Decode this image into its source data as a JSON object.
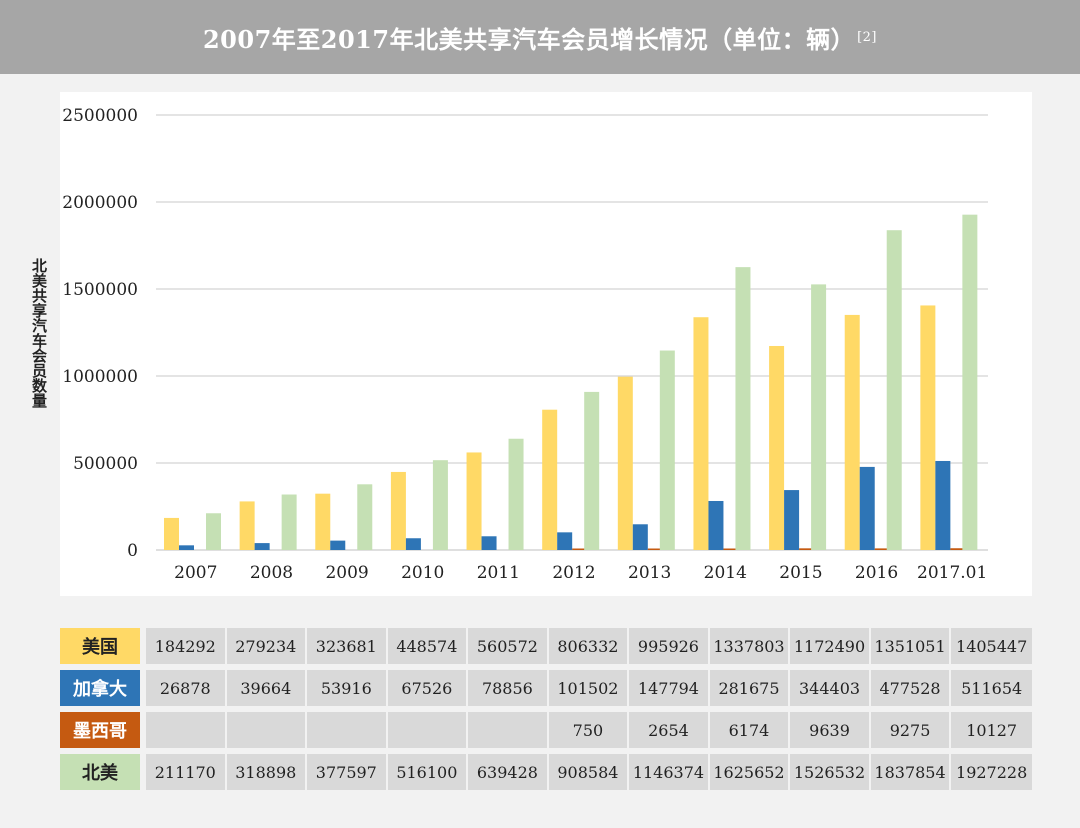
{
  "title": "2007年至2017年北美共享汽车会员增长情况（单位：辆）",
  "title_ref": "[2]",
  "colors": {
    "us": "#ffd966",
    "canada": "#2e75b6",
    "mexico": "#c55a11",
    "north_america": "#c5e0b4"
  },
  "chart_data": {
    "type": "bar",
    "categories": [
      "2007",
      "2008",
      "2009",
      "2010",
      "2011",
      "2012",
      "2013",
      "2014",
      "2015",
      "2016",
      "2017.01"
    ],
    "ylabel": "北美共享汽车会员数量",
    "ylim": [
      0,
      2500000
    ],
    "yticks": [
      "0",
      "500000",
      "1000000",
      "1500000",
      "2000000",
      "2500000"
    ],
    "yticks_values": [
      0,
      500000,
      1000000,
      1500000,
      2000000,
      2500000
    ],
    "grid": true,
    "series": [
      {
        "name": "美国",
        "values": [
          184292,
          279234,
          323681,
          448574,
          560572,
          806332,
          995926,
          1337803,
          1172490,
          1351051,
          1405447
        ]
      },
      {
        "name": "加拿大",
        "values": [
          26878,
          39664,
          53916,
          67526,
          78856,
          101502,
          147794,
          281675,
          344403,
          477528,
          511654
        ]
      },
      {
        "name": "墨西哥",
        "values": [
          null,
          null,
          null,
          null,
          null,
          750,
          2654,
          6174,
          9639,
          9275,
          10127
        ]
      },
      {
        "name": "北美",
        "values": [
          211170,
          318898,
          377597,
          516100,
          639428,
          908584,
          1146374,
          1625652,
          1526532,
          1837854,
          1927228
        ]
      }
    ]
  },
  "table": {
    "rows": [
      {
        "label": "美国",
        "cells": [
          "184292",
          "279234",
          "323681",
          "448574",
          "560572",
          "806332",
          "995926",
          "1337803",
          "1172490",
          "1351051",
          "1405447"
        ]
      },
      {
        "label": "加拿大",
        "cells": [
          "26878",
          "39664",
          "53916",
          "67526",
          "78856",
          "101502",
          "147794",
          "281675",
          "344403",
          "477528",
          "511654"
        ]
      },
      {
        "label": "墨西哥",
        "cells": [
          "",
          "",
          "",
          "",
          "",
          "750",
          "2654",
          "6174",
          "9639",
          "9275",
          "10127"
        ]
      },
      {
        "label": "北美",
        "cells": [
          "211170",
          "318898",
          "377597",
          "516100",
          "639428",
          "908584",
          "1146374",
          "1625652",
          "1526532",
          "1837854",
          "1927228"
        ]
      }
    ]
  }
}
